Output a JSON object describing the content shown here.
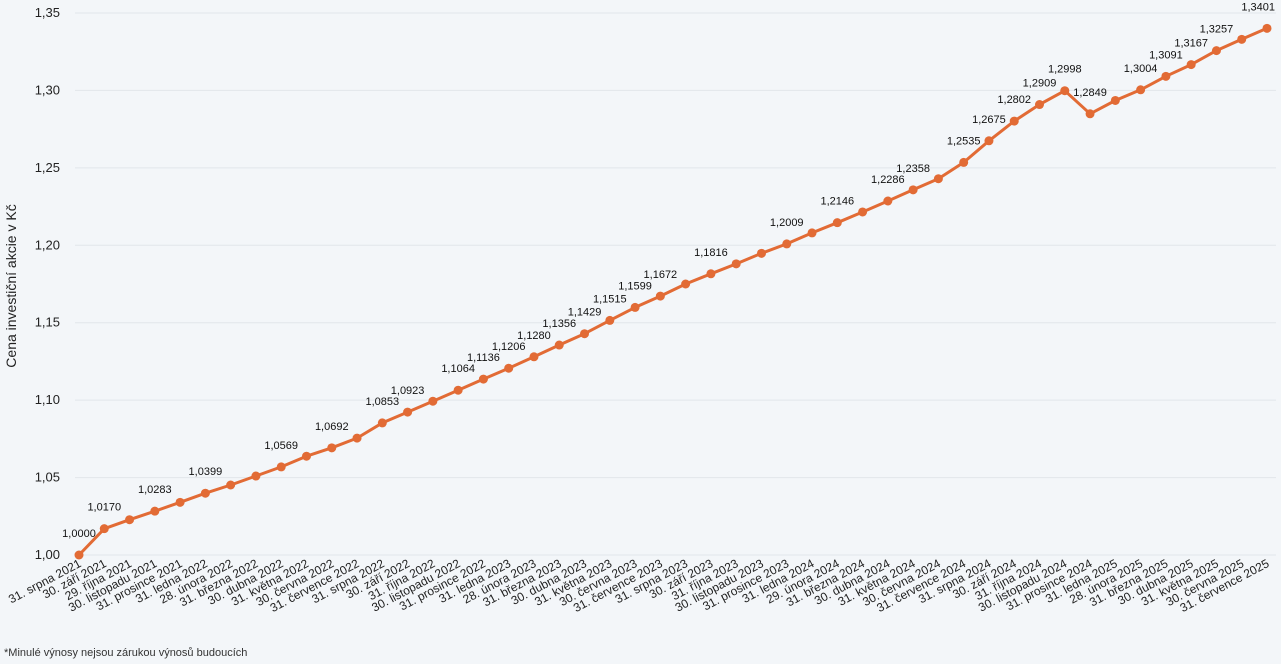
{
  "footnote": "*Minulé výnosy nejsou zárukou výnosů budoucích",
  "chart_data": {
    "type": "line",
    "title": "",
    "xlabel": "",
    "ylabel": "Cena investiční akcie v Kč",
    "ylim": [
      1.0,
      1.35
    ],
    "yticks": [
      "1,00",
      "1,05",
      "1,10",
      "1,15",
      "1,20",
      "1,25",
      "1,30",
      "1,35"
    ],
    "grid": true,
    "line_color": "#e26b35",
    "categories": [
      "31. srpna 2021",
      "30. září 2021",
      "29. října 2021",
      "30. listopadu 2021",
      "31. prosince 2021",
      "31. ledna 2022",
      "28. února 2022",
      "31. března 2022",
      "30. dubna 2022",
      "31. května 2022",
      "30. června 2022",
      "31. července 2022",
      "31. srpna 2022",
      "30. září 2022",
      "31. října 2022",
      "30. listopadu 2022",
      "31. prosince 2022",
      "31. ledna 2023",
      "28. února 2023",
      "31. března 2023",
      "30. dubna 2023",
      "31. května 2023",
      "30. června 2023",
      "31. července 2023",
      "31. srpna 2023",
      "30. září 2023",
      "31. října 2023",
      "30. listopadu 2023",
      "31. prosince 2023",
      "31. ledna 2024",
      "29. února 2024",
      "31. března 2024",
      "30. dubna 2024",
      "31. května 2024",
      "30. června 2024",
      "31. července 2024",
      "31. srpna 2024",
      "30. září 2024",
      "31. října 2024",
      "30. listopadu 2024",
      "31. prosince 2024",
      "31. ledna 2025",
      "28. února 2025",
      "31. března 2025",
      "30. dubna 2025",
      "31. května 2025",
      "30. června 2025",
      "31. července 2025"
    ],
    "values": [
      1.0,
      1.017,
      1.0228,
      1.0283,
      1.034,
      1.0399,
      1.0452,
      1.051,
      1.0569,
      1.0638,
      1.0692,
      1.0755,
      1.0853,
      1.0923,
      1.0993,
      1.1064,
      1.1136,
      1.1206,
      1.128,
      1.1356,
      1.1429,
      1.1515,
      1.1599,
      1.1672,
      1.175,
      1.1816,
      1.188,
      1.1948,
      1.2009,
      1.208,
      1.2146,
      1.2215,
      1.2286,
      1.2358,
      1.243,
      1.2535,
      1.2675,
      1.2802,
      1.2909,
      1.2998,
      1.2849,
      1.2935,
      1.3004,
      1.3091,
      1.3167,
      1.3257,
      1.333,
      1.3401
    ],
    "data_labels": [
      "1,0000",
      "1,0170",
      null,
      "1,0283",
      null,
      "1,0399",
      null,
      null,
      "1,0569",
      null,
      "1,0692",
      null,
      "1,0853",
      "1,0923",
      null,
      "1,1064",
      "1,1136",
      "1,1206",
      "1,1280",
      "1,1356",
      "1,1429",
      "1,1515",
      "1,1599",
      "1,1672",
      null,
      "1,1816",
      null,
      null,
      "1,2009",
      null,
      "1,2146",
      null,
      "1,2286",
      "1,2358",
      null,
      "1,2535",
      "1,2675",
      "1,2802",
      "1,2909",
      "1,2998",
      "1,2849",
      null,
      "1,3004",
      "1,3091",
      "1,3167",
      "1,3257",
      null,
      "1,3401"
    ]
  }
}
